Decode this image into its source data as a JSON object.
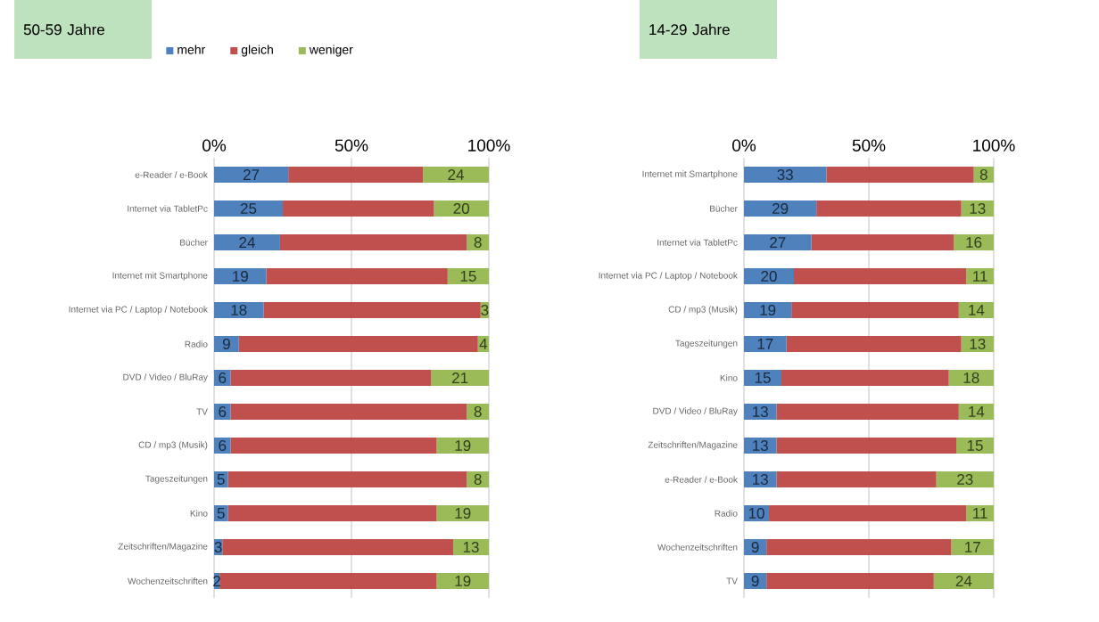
{
  "chart_data": [
    {
      "type": "bar",
      "orientation": "horizontal",
      "stacked": true,
      "title": "50-59 Jahre",
      "legend": "top",
      "grid": "x",
      "categories": [
        "e-Reader / e-Book",
        "Internet via TabletPc",
        "Bücher",
        "Internet mit Smartphone",
        "Internet via PC / Laptop / Notebook",
        "Radio",
        "DVD / Video / BluRay",
        "TV",
        "CD / mp3 (Musik)",
        "Tageszeitungen",
        "Kino",
        "Zeitschriften/Magazine",
        "Wochenzeitschriften"
      ],
      "xlim": [
        0,
        100
      ],
      "xticks": [
        {
          "value": 0,
          "label": "0%"
        },
        {
          "value": 50,
          "label": "50%"
        },
        {
          "value": 100,
          "label": "100%"
        }
      ],
      "series": [
        {
          "name": "mehr",
          "color": "#4f81bd",
          "values": [
            27,
            25,
            24,
            19,
            18,
            9,
            6,
            6,
            6,
            5,
            5,
            3,
            2
          ],
          "value_labels": [
            "27",
            "25",
            "24",
            "19",
            "18",
            "9",
            "6",
            "6",
            "6",
            "5",
            "5",
            "3",
            "2"
          ]
        },
        {
          "name": "gleich",
          "color": "#c0504d",
          "values": [
            49,
            55,
            68,
            66,
            79,
            87,
            73,
            86,
            75,
            87,
            76,
            84,
            79
          ]
        },
        {
          "name": "weniger",
          "color": "#9bbb59",
          "values": [
            24,
            20,
            8,
            15,
            3,
            4,
            21,
            8,
            19,
            8,
            19,
            13,
            19
          ],
          "value_labels": [
            "24",
            "20",
            "8",
            "15",
            "3",
            "4",
            "21",
            "8",
            "19",
            "8",
            "19",
            "13",
            "19"
          ]
        }
      ]
    },
    {
      "type": "bar",
      "orientation": "horizontal",
      "stacked": true,
      "title": "14-29 Jahre",
      "grid": "x",
      "categories": [
        "Internet mit Smartphone",
        "Bücher",
        "Internet via TabletPc",
        "Internet via PC / Laptop / Notebook",
        "CD / mp3 (Musik)",
        "Tageszeitungen",
        "Kino",
        "DVD / Video / BluRay",
        "Zeitschriften/Magazine",
        "e-Reader / e-Book",
        "Radio",
        "Wochenzeitschriften",
        "TV"
      ],
      "xlim": [
        0,
        100
      ],
      "xticks": [
        {
          "value": 0,
          "label": "0%"
        },
        {
          "value": 50,
          "label": "50%"
        },
        {
          "value": 100,
          "label": "100%"
        }
      ],
      "series": [
        {
          "color": "#4f81bd",
          "values": [
            33,
            29,
            27,
            20,
            19,
            17,
            15,
            13,
            13,
            13,
            10,
            9,
            9
          ],
          "value_labels": [
            "33",
            "29",
            "27",
            "20",
            "19",
            "17",
            "15",
            "13",
            "13",
            "13",
            "10",
            "9",
            "9"
          ]
        },
        {
          "color": "#c0504d",
          "values": [
            59,
            58,
            57,
            69,
            67,
            70,
            67,
            73,
            72,
            64,
            79,
            74,
            67
          ]
        },
        {
          "color": "#9bbb59",
          "values": [
            8,
            13,
            16,
            11,
            14,
            13,
            18,
            14,
            15,
            23,
            11,
            17,
            24
          ],
          "value_labels": [
            "8",
            "13",
            "16",
            "11",
            "14",
            "13",
            "18",
            "14",
            "15",
            "23",
            "11",
            "17",
            "24"
          ]
        }
      ]
    }
  ]
}
